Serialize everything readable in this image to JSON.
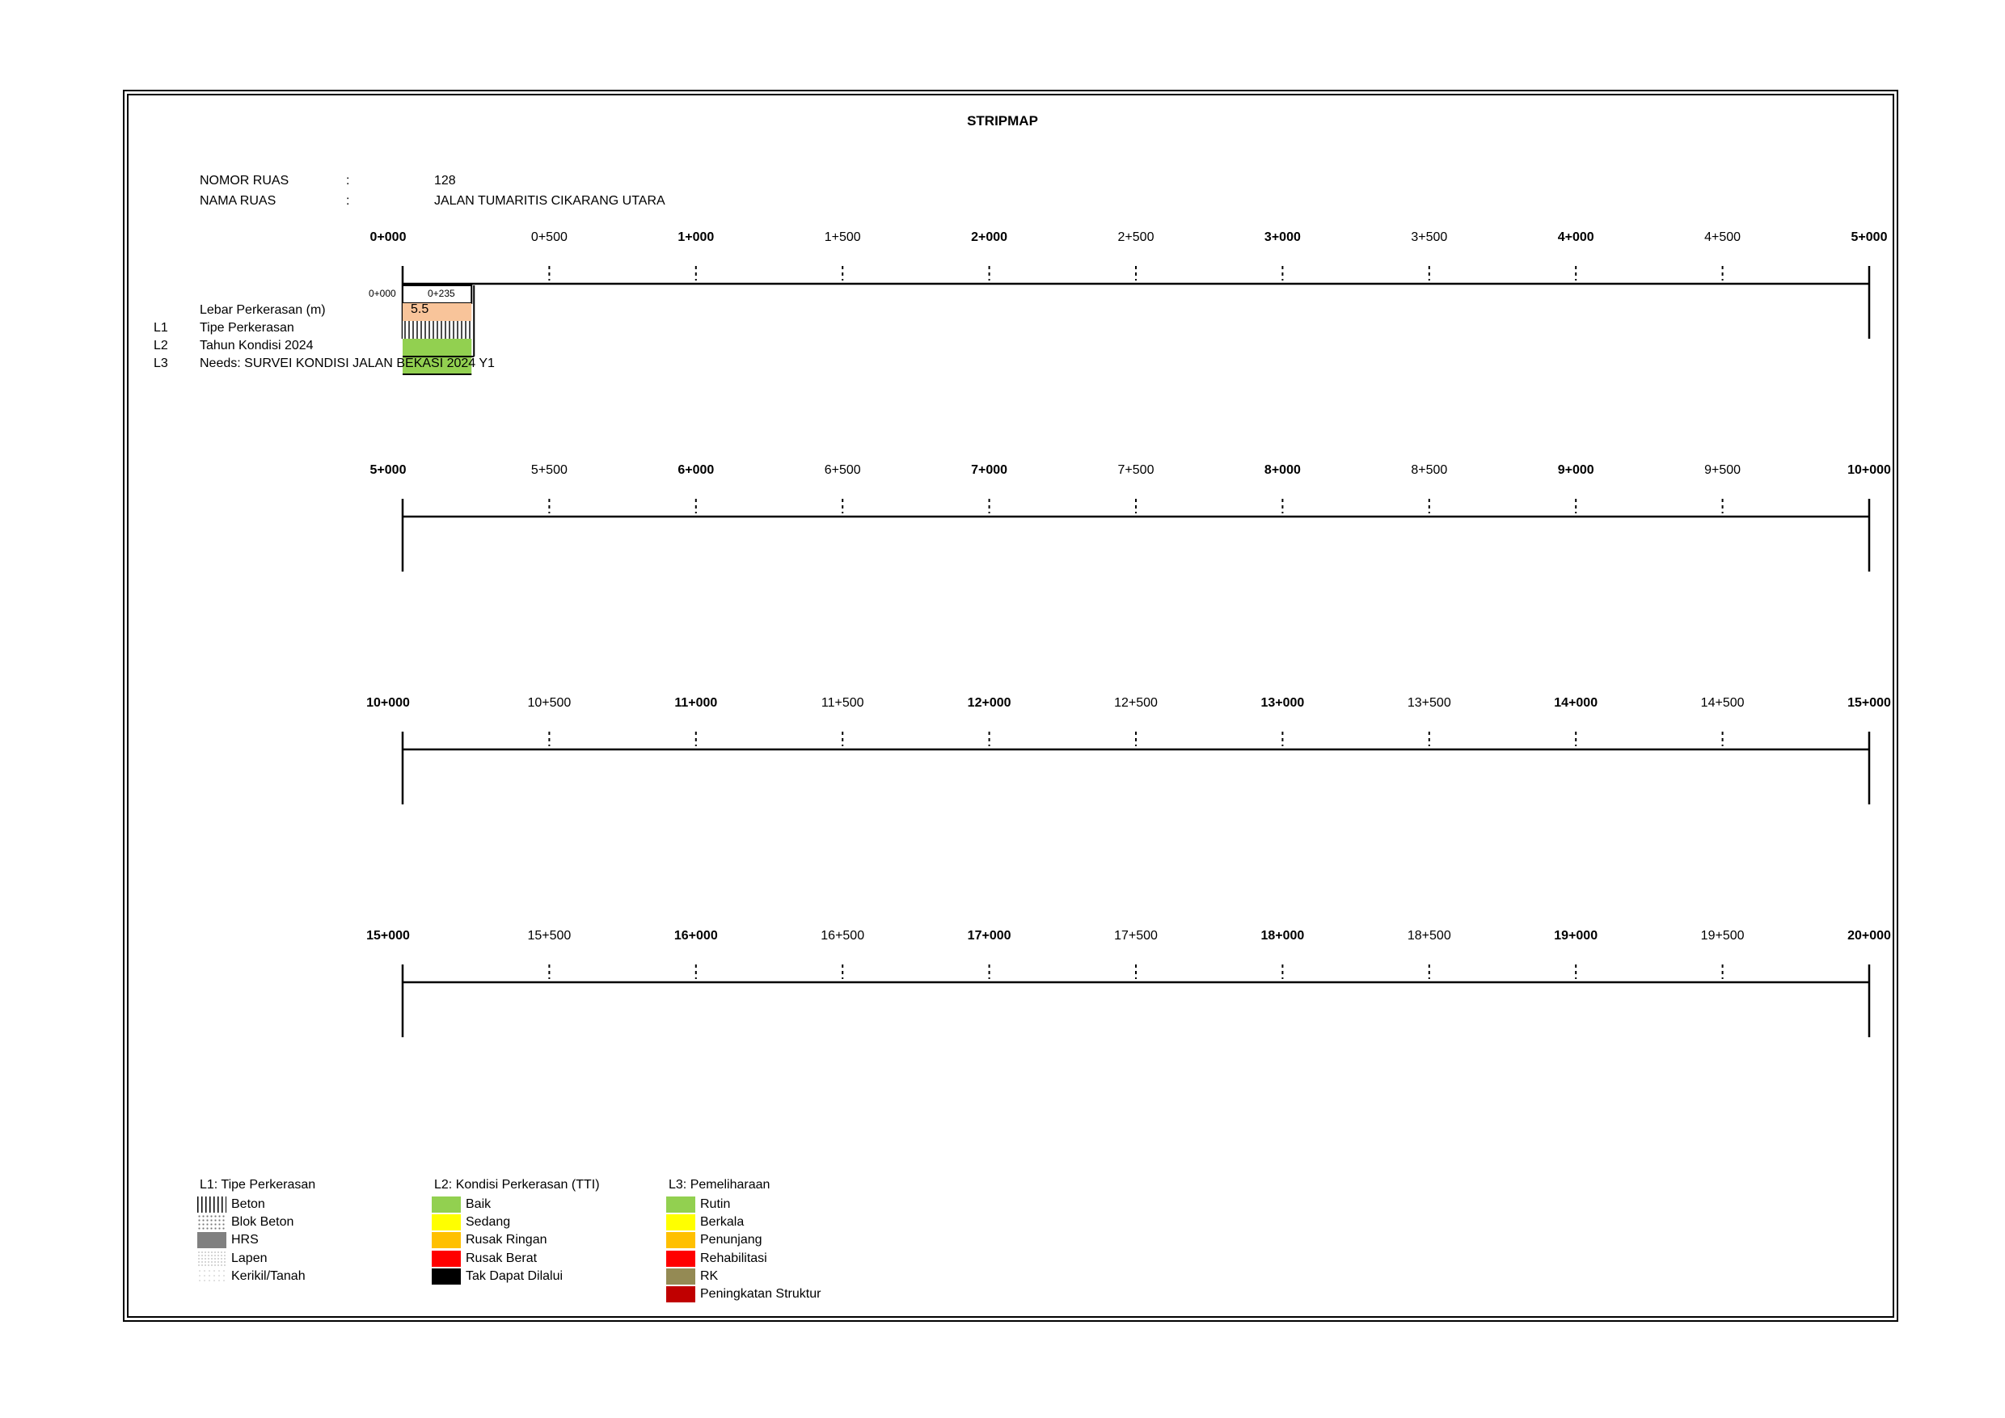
{
  "title": "STRIPMAP",
  "header": {
    "nomor_label": "NOMOR RUAS",
    "nama_label": "NAMA RUAS",
    "colon": ":",
    "nomor_value": "128",
    "nama_value": "JALAN TUMARITIS CIKARANG UTARA"
  },
  "strips": [
    {
      "ticks": [
        "0+000",
        "0+500",
        "1+000",
        "1+500",
        "2+000",
        "2+500",
        "3+000",
        "3+500",
        "4+000",
        "4+500",
        "5+000"
      ]
    },
    {
      "ticks": [
        "5+000",
        "5+500",
        "6+000",
        "6+500",
        "7+000",
        "7+500",
        "8+000",
        "8+500",
        "9+000",
        "9+500",
        "10+000"
      ]
    },
    {
      "ticks": [
        "10+000",
        "10+500",
        "11+000",
        "11+500",
        "12+000",
        "12+500",
        "13+000",
        "13+500",
        "14+000",
        "14+500",
        "15+000"
      ]
    },
    {
      "ticks": [
        "15+000",
        "15+500",
        "16+000",
        "16+500",
        "17+000",
        "17+500",
        "18+000",
        "18+500",
        "19+000",
        "19+500",
        "20+000"
      ]
    }
  ],
  "rows": {
    "lebar": {
      "code": "",
      "label": "Lebar Perkerasan (m)"
    },
    "l1": {
      "code": "L1",
      "label": "Tipe Perkerasan"
    },
    "l2": {
      "code": "L2",
      "label": "Tahun Kondisi 2024"
    },
    "l3": {
      "code": "L3",
      "label": "Needs: SURVEI KONDISI JALAN BEKASI 2024 Y1"
    }
  },
  "segment": {
    "start": "0+000",
    "end": "0+235",
    "start_km": 0,
    "end_km": 0.235,
    "width_m": "5.5",
    "width_color": "#f8c49a",
    "type": "Beton",
    "condition": "Baik",
    "condition_color": "#92d050",
    "maintenance": "Rutin",
    "maintenance_color": "#92d050"
  },
  "legend": {
    "l1": {
      "title": "L1: Tipe Perkerasan",
      "items": [
        {
          "label": "Beton",
          "pattern": "beton"
        },
        {
          "label": "Blok Beton",
          "pattern": "blok"
        },
        {
          "label": "HRS",
          "pattern": "hrs"
        },
        {
          "label": "Lapen",
          "pattern": "lapen"
        },
        {
          "label": "Kerikil/Tanah",
          "pattern": "kerikil"
        }
      ]
    },
    "l2": {
      "title": "L2: Kondisi Perkerasan (TTI)",
      "items": [
        {
          "label": "Baik",
          "color": "#92d050"
        },
        {
          "label": "Sedang",
          "color": "#ffff00"
        },
        {
          "label": "Rusak Ringan",
          "color": "#ffc000"
        },
        {
          "label": "Rusak Berat",
          "color": "#ff0000"
        },
        {
          "label": "Tak Dapat Dilalui",
          "color": "#000000"
        }
      ]
    },
    "l3": {
      "title": "L3: Pemeliharaan",
      "items": [
        {
          "label": "Rutin",
          "color": "#92d050"
        },
        {
          "label": "Berkala",
          "color": "#ffff00"
        },
        {
          "label": "Penunjang",
          "color": "#ffc000"
        },
        {
          "label": "Rehabilitasi",
          "color": "#ff0000"
        },
        {
          "label": "RK",
          "color": "#948a54"
        },
        {
          "label": "Peningkatan Struktur",
          "color": "#c00000"
        }
      ]
    }
  }
}
